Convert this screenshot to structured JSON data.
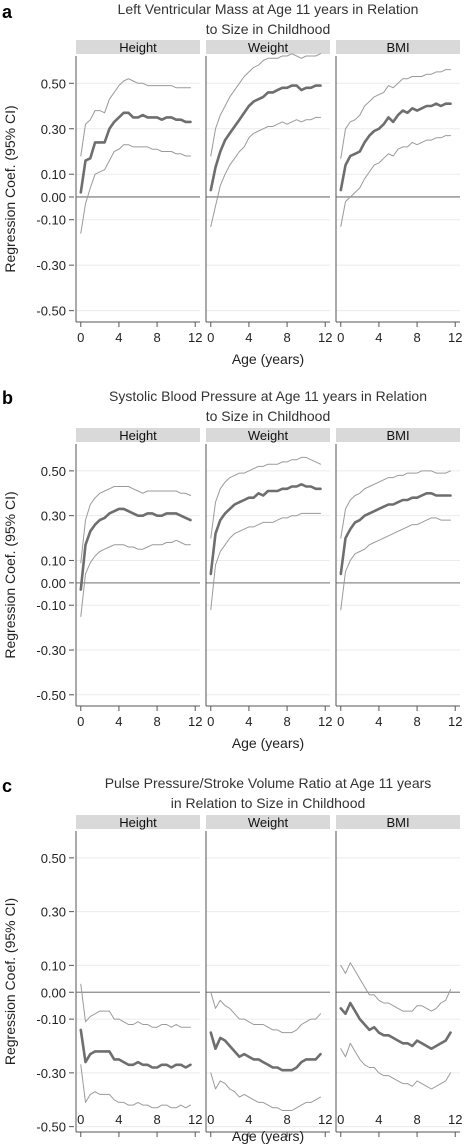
{
  "colors": {
    "background": "#ffffff",
    "strip_fill": "#d9d9d9",
    "grid": "#ebebeb",
    "zero_line": "#8a8a8a",
    "estimate_line": "#6e6e6e",
    "ci_line": "#9a9a9a",
    "axis": "#555555"
  },
  "chart_data": [
    {
      "type": "line",
      "panel_letter": "a",
      "title_lines": [
        "Left Ventricular Mass at Age 11 years in Relation",
        "to Size in Childhood"
      ],
      "ylabel": "Regression Coef. (95% CI)",
      "xlabel": "Age (years)",
      "ylim": [
        -0.55,
        0.62
      ],
      "yticks": [
        0.5,
        0.3,
        0.1,
        0.0,
        -0.1,
        -0.3,
        -0.5
      ],
      "ytick_labels": [
        "0.50",
        "0.30",
        "0.10",
        "0.00",
        "-0.10",
        "-0.30",
        "-0.50"
      ],
      "xlim": [
        -0.5,
        12.5
      ],
      "xticks": [
        0,
        4,
        8,
        12
      ],
      "xtick_labels": [
        "0",
        "4",
        "8",
        "12"
      ],
      "grid": true,
      "facets": [
        {
          "name": "Height",
          "x": [
            0,
            0.5,
            1,
            1.5,
            2,
            2.5,
            3,
            3.5,
            4,
            4.5,
            5,
            5.5,
            6,
            6.5,
            7,
            7.5,
            8,
            8.5,
            9,
            9.5,
            10,
            10.5,
            11,
            11.5
          ],
          "estimate": [
            0.02,
            0.16,
            0.17,
            0.24,
            0.24,
            0.24,
            0.3,
            0.33,
            0.35,
            0.37,
            0.37,
            0.35,
            0.35,
            0.36,
            0.35,
            0.35,
            0.35,
            0.34,
            0.35,
            0.35,
            0.34,
            0.34,
            0.33,
            0.33
          ],
          "lower": [
            -0.16,
            -0.03,
            0.04,
            0.1,
            0.11,
            0.12,
            0.16,
            0.2,
            0.21,
            0.23,
            0.23,
            0.22,
            0.22,
            0.22,
            0.22,
            0.21,
            0.21,
            0.2,
            0.2,
            0.2,
            0.19,
            0.19,
            0.18,
            0.18
          ],
          "upper": [
            0.18,
            0.32,
            0.34,
            0.38,
            0.38,
            0.37,
            0.43,
            0.46,
            0.49,
            0.51,
            0.52,
            0.51,
            0.5,
            0.5,
            0.49,
            0.49,
            0.49,
            0.49,
            0.49,
            0.49,
            0.48,
            0.48,
            0.48,
            0.48
          ]
        },
        {
          "name": "Weight",
          "x": [
            0,
            0.5,
            1,
            1.5,
            2,
            2.5,
            3,
            3.5,
            4,
            4.5,
            5,
            5.5,
            6,
            6.5,
            7,
            7.5,
            8,
            8.5,
            9,
            9.5,
            10,
            10.5,
            11,
            11.5
          ],
          "estimate": [
            0.03,
            0.13,
            0.2,
            0.25,
            0.28,
            0.31,
            0.34,
            0.37,
            0.4,
            0.42,
            0.43,
            0.44,
            0.46,
            0.46,
            0.47,
            0.48,
            0.48,
            0.49,
            0.49,
            0.47,
            0.48,
            0.48,
            0.49,
            0.49
          ],
          "lower": [
            -0.13,
            -0.04,
            0.05,
            0.1,
            0.14,
            0.17,
            0.2,
            0.22,
            0.26,
            0.28,
            0.29,
            0.3,
            0.31,
            0.31,
            0.32,
            0.33,
            0.32,
            0.33,
            0.34,
            0.33,
            0.34,
            0.34,
            0.35,
            0.35
          ],
          "upper": [
            0.18,
            0.3,
            0.36,
            0.4,
            0.44,
            0.47,
            0.5,
            0.53,
            0.55,
            0.57,
            0.58,
            0.6,
            0.61,
            0.61,
            0.61,
            0.62,
            0.62,
            0.63,
            0.62,
            0.61,
            0.62,
            0.62,
            0.62,
            0.63
          ]
        },
        {
          "name": "BMI",
          "x": [
            0,
            0.5,
            1,
            1.5,
            2,
            2.5,
            3,
            3.5,
            4,
            4.5,
            5,
            5.5,
            6,
            6.5,
            7,
            7.5,
            8,
            8.5,
            9,
            9.5,
            10,
            10.5,
            11,
            11.5
          ],
          "estimate": [
            0.03,
            0.14,
            0.18,
            0.19,
            0.2,
            0.24,
            0.27,
            0.29,
            0.3,
            0.32,
            0.35,
            0.33,
            0.36,
            0.38,
            0.37,
            0.39,
            0.38,
            0.39,
            0.4,
            0.4,
            0.41,
            0.4,
            0.41,
            0.41
          ],
          "lower": [
            -0.13,
            -0.02,
            0.0,
            0.02,
            0.04,
            0.08,
            0.11,
            0.14,
            0.15,
            0.17,
            0.19,
            0.18,
            0.21,
            0.22,
            0.22,
            0.24,
            0.23,
            0.24,
            0.25,
            0.25,
            0.26,
            0.26,
            0.27,
            0.27
          ],
          "upper": [
            0.17,
            0.3,
            0.33,
            0.34,
            0.36,
            0.4,
            0.42,
            0.44,
            0.45,
            0.46,
            0.49,
            0.48,
            0.5,
            0.52,
            0.52,
            0.53,
            0.53,
            0.53,
            0.54,
            0.54,
            0.55,
            0.55,
            0.56,
            0.56
          ]
        }
      ]
    },
    {
      "type": "line",
      "panel_letter": "b",
      "title_lines": [
        "Systolic Blood Pressure at Age 11 years in Relation",
        "to Size in Childhood"
      ],
      "ylabel": "Regression Coef. (95% CI)",
      "xlabel": "Age (years)",
      "ylim": [
        -0.55,
        0.62
      ],
      "yticks": [
        0.5,
        0.3,
        0.1,
        0.0,
        -0.1,
        -0.3,
        -0.5
      ],
      "ytick_labels": [
        "0.50",
        "0.30",
        "0.10",
        "0.00",
        "-0.10",
        "-0.30",
        "-0.50"
      ],
      "xlim": [
        -0.5,
        12.5
      ],
      "xticks": [
        0,
        4,
        8,
        12
      ],
      "xtick_labels": [
        "0",
        "4",
        "8",
        "12"
      ],
      "grid": true,
      "facets": [
        {
          "name": "Height",
          "x": [
            0,
            0.5,
            1,
            1.5,
            2,
            2.5,
            3,
            3.5,
            4,
            4.5,
            5,
            5.5,
            6,
            6.5,
            7,
            7.5,
            8,
            8.5,
            9,
            9.5,
            10,
            10.5,
            11,
            11.5
          ],
          "estimate": [
            -0.03,
            0.17,
            0.23,
            0.26,
            0.28,
            0.29,
            0.31,
            0.32,
            0.33,
            0.33,
            0.32,
            0.31,
            0.3,
            0.3,
            0.31,
            0.31,
            0.3,
            0.3,
            0.31,
            0.31,
            0.31,
            0.3,
            0.29,
            0.28
          ],
          "lower": [
            -0.15,
            0.04,
            0.09,
            0.12,
            0.14,
            0.15,
            0.16,
            0.17,
            0.17,
            0.17,
            0.16,
            0.16,
            0.15,
            0.15,
            0.16,
            0.17,
            0.17,
            0.17,
            0.18,
            0.18,
            0.19,
            0.18,
            0.17,
            0.17
          ],
          "upper": [
            0.09,
            0.28,
            0.35,
            0.38,
            0.4,
            0.41,
            0.42,
            0.43,
            0.43,
            0.43,
            0.43,
            0.42,
            0.41,
            0.4,
            0.41,
            0.41,
            0.41,
            0.41,
            0.41,
            0.41,
            0.41,
            0.4,
            0.4,
            0.39
          ]
        },
        {
          "name": "Weight",
          "x": [
            0,
            0.5,
            1,
            1.5,
            2,
            2.5,
            3,
            3.5,
            4,
            4.5,
            5,
            5.5,
            6,
            6.5,
            7,
            7.5,
            8,
            8.5,
            9,
            9.5,
            10,
            10.5,
            11,
            11.5
          ],
          "estimate": [
            0.04,
            0.22,
            0.28,
            0.31,
            0.33,
            0.35,
            0.36,
            0.37,
            0.38,
            0.38,
            0.4,
            0.39,
            0.41,
            0.41,
            0.41,
            0.42,
            0.42,
            0.43,
            0.43,
            0.44,
            0.43,
            0.43,
            0.42,
            0.42
          ],
          "lower": [
            -0.12,
            0.08,
            0.14,
            0.17,
            0.2,
            0.22,
            0.23,
            0.24,
            0.25,
            0.25,
            0.26,
            0.27,
            0.27,
            0.27,
            0.28,
            0.29,
            0.29,
            0.3,
            0.3,
            0.31,
            0.31,
            0.31,
            0.31,
            0.31
          ],
          "upper": [
            0.2,
            0.36,
            0.42,
            0.45,
            0.47,
            0.48,
            0.49,
            0.49,
            0.5,
            0.51,
            0.52,
            0.52,
            0.53,
            0.53,
            0.53,
            0.54,
            0.54,
            0.55,
            0.55,
            0.56,
            0.56,
            0.55,
            0.54,
            0.53
          ]
        },
        {
          "name": "BMI",
          "x": [
            0,
            0.5,
            1,
            1.5,
            2,
            2.5,
            3,
            3.5,
            4,
            4.5,
            5,
            5.5,
            6,
            6.5,
            7,
            7.5,
            8,
            8.5,
            9,
            9.5,
            10,
            10.5,
            11,
            11.5
          ],
          "estimate": [
            0.04,
            0.2,
            0.24,
            0.27,
            0.28,
            0.3,
            0.31,
            0.32,
            0.33,
            0.34,
            0.35,
            0.35,
            0.36,
            0.37,
            0.37,
            0.38,
            0.38,
            0.39,
            0.4,
            0.4,
            0.39,
            0.39,
            0.39,
            0.39
          ],
          "lower": [
            -0.12,
            0.05,
            0.1,
            0.13,
            0.14,
            0.15,
            0.17,
            0.18,
            0.19,
            0.2,
            0.21,
            0.22,
            0.23,
            0.24,
            0.25,
            0.26,
            0.26,
            0.27,
            0.28,
            0.29,
            0.29,
            0.28,
            0.28,
            0.28
          ],
          "upper": [
            0.2,
            0.33,
            0.37,
            0.39,
            0.4,
            0.42,
            0.43,
            0.44,
            0.45,
            0.46,
            0.47,
            0.47,
            0.48,
            0.48,
            0.49,
            0.49,
            0.49,
            0.5,
            0.5,
            0.5,
            0.49,
            0.49,
            0.49,
            0.5
          ]
        }
      ]
    },
    {
      "type": "line",
      "panel_letter": "c",
      "title_lines": [
        "Pulse Pressure/Stroke Volume Ratio at Age 11 years",
        "in Relation to Size in Childhood"
      ],
      "ylabel": "Regression Coef. (95% CI)",
      "xlabel": "Age (years)",
      "ylim": [
        -0.52,
        0.6
      ],
      "yticks": [
        0.5,
        0.3,
        0.1,
        0.0,
        -0.1,
        -0.3,
        -0.5
      ],
      "ytick_labels": [
        "0.50",
        "0.30",
        "0.10",
        "0.00",
        "-0.10",
        "-0.30",
        "-0.50"
      ],
      "xlim": [
        -0.5,
        12.5
      ],
      "xticks": [
        0,
        4,
        8,
        12
      ],
      "xtick_labels": [
        "0",
        "4",
        "8",
        "12"
      ],
      "grid": true,
      "facets": [
        {
          "name": "Height",
          "x": [
            0,
            0.5,
            1,
            1.5,
            2,
            2.5,
            3,
            3.5,
            4,
            4.5,
            5,
            5.5,
            6,
            6.5,
            7,
            7.5,
            8,
            8.5,
            9,
            9.5,
            10,
            10.5,
            11,
            11.5
          ],
          "estimate": [
            -0.14,
            -0.26,
            -0.23,
            -0.22,
            -0.22,
            -0.22,
            -0.22,
            -0.25,
            -0.25,
            -0.26,
            -0.27,
            -0.27,
            -0.26,
            -0.27,
            -0.27,
            -0.28,
            -0.28,
            -0.27,
            -0.27,
            -0.28,
            -0.27,
            -0.27,
            -0.28,
            -0.27
          ],
          "lower": [
            -0.27,
            -0.41,
            -0.38,
            -0.37,
            -0.38,
            -0.38,
            -0.38,
            -0.4,
            -0.41,
            -0.41,
            -0.42,
            -0.42,
            -0.41,
            -0.42,
            -0.42,
            -0.43,
            -0.43,
            -0.42,
            -0.42,
            -0.43,
            -0.43,
            -0.42,
            -0.43,
            -0.42
          ],
          "upper": [
            0.03,
            -0.11,
            -0.09,
            -0.08,
            -0.07,
            -0.07,
            -0.07,
            -0.1,
            -0.1,
            -0.11,
            -0.12,
            -0.12,
            -0.11,
            -0.12,
            -0.12,
            -0.13,
            -0.13,
            -0.12,
            -0.12,
            -0.13,
            -0.12,
            -0.13,
            -0.13,
            -0.13
          ]
        },
        {
          "name": "Weight",
          "x": [
            0,
            0.5,
            1,
            1.5,
            2,
            2.5,
            3,
            3.5,
            4,
            4.5,
            5,
            5.5,
            6,
            6.5,
            7,
            7.5,
            8,
            8.5,
            9,
            9.5,
            10,
            10.5,
            11,
            11.5
          ],
          "estimate": [
            -0.15,
            -0.21,
            -0.17,
            -0.18,
            -0.2,
            -0.22,
            -0.24,
            -0.23,
            -0.24,
            -0.25,
            -0.25,
            -0.26,
            -0.27,
            -0.28,
            -0.28,
            -0.29,
            -0.29,
            -0.29,
            -0.28,
            -0.26,
            -0.25,
            -0.25,
            -0.25,
            -0.23
          ],
          "lower": [
            -0.3,
            -0.36,
            -0.33,
            -0.34,
            -0.36,
            -0.37,
            -0.39,
            -0.38,
            -0.39,
            -0.4,
            -0.41,
            -0.41,
            -0.42,
            -0.43,
            -0.43,
            -0.44,
            -0.44,
            -0.44,
            -0.43,
            -0.42,
            -0.41,
            -0.41,
            -0.4,
            -0.39
          ],
          "upper": [
            0.0,
            -0.06,
            -0.03,
            -0.05,
            -0.06,
            -0.08,
            -0.1,
            -0.1,
            -0.11,
            -0.12,
            -0.12,
            -0.12,
            -0.13,
            -0.14,
            -0.14,
            -0.15,
            -0.15,
            -0.15,
            -0.14,
            -0.12,
            -0.11,
            -0.1,
            -0.1,
            -0.08
          ]
        },
        {
          "name": "BMI",
          "x": [
            0,
            0.5,
            1,
            1.5,
            2,
            2.5,
            3,
            3.5,
            4,
            4.5,
            5,
            5.5,
            6,
            6.5,
            7,
            7.5,
            8,
            8.5,
            9,
            9.5,
            10,
            10.5,
            11,
            11.5
          ],
          "estimate": [
            -0.06,
            -0.08,
            -0.04,
            -0.07,
            -0.1,
            -0.12,
            -0.14,
            -0.13,
            -0.15,
            -0.16,
            -0.16,
            -0.17,
            -0.18,
            -0.19,
            -0.19,
            -0.2,
            -0.18,
            -0.19,
            -0.2,
            -0.21,
            -0.2,
            -0.19,
            -0.18,
            -0.15
          ],
          "lower": [
            -0.21,
            -0.24,
            -0.19,
            -0.22,
            -0.25,
            -0.27,
            -0.28,
            -0.28,
            -0.3,
            -0.31,
            -0.31,
            -0.32,
            -0.33,
            -0.34,
            -0.34,
            -0.35,
            -0.33,
            -0.34,
            -0.35,
            -0.36,
            -0.35,
            -0.34,
            -0.33,
            -0.3
          ],
          "upper": [
            0.1,
            0.07,
            0.11,
            0.08,
            0.05,
            0.02,
            -0.01,
            -0.01,
            -0.03,
            -0.04,
            -0.04,
            -0.05,
            -0.06,
            -0.07,
            -0.07,
            -0.07,
            -0.05,
            -0.05,
            -0.06,
            -0.07,
            -0.06,
            -0.04,
            -0.03,
            0.01
          ]
        }
      ]
    }
  ]
}
